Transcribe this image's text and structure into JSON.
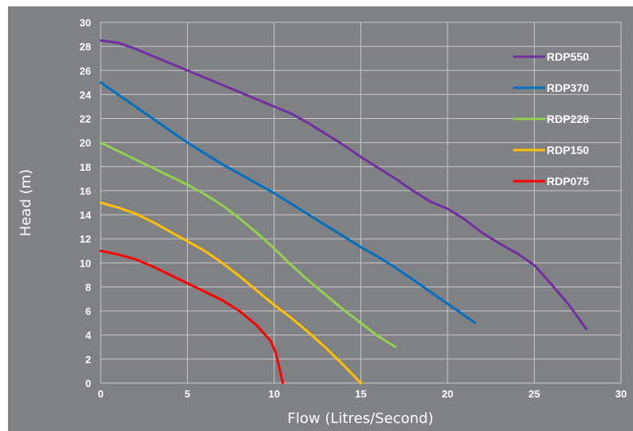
{
  "chart_data": {
    "type": "line",
    "title": "",
    "xlabel": "Flow (Litres/Second)",
    "ylabel": "Head (m)",
    "xlim": [
      0,
      30
    ],
    "ylim": [
      0,
      30
    ],
    "x_ticks": [
      "0",
      "5",
      "10",
      "15",
      "20",
      "25",
      "30"
    ],
    "y_ticks": [
      "0",
      "2",
      "4",
      "6",
      "8",
      "10",
      "12",
      "14",
      "16",
      "18",
      "20",
      "22",
      "24",
      "26",
      "28",
      "30"
    ],
    "grid": true,
    "legend_position": "top-right",
    "series": [
      {
        "name": "RDP550",
        "color": "#7030a0",
        "points": [
          [
            0,
            28.5
          ],
          [
            1,
            28.3
          ],
          [
            2,
            27.8
          ],
          [
            3,
            27.2
          ],
          [
            4,
            26.6
          ],
          [
            5,
            26.0
          ],
          [
            6,
            25.4
          ],
          [
            7,
            24.8
          ],
          [
            8,
            24.2
          ],
          [
            9,
            23.6
          ],
          [
            10,
            23.0
          ],
          [
            11,
            22.4
          ],
          [
            12,
            21.6
          ],
          [
            13,
            20.7
          ],
          [
            14,
            19.8
          ],
          [
            15,
            18.8
          ],
          [
            16,
            17.9
          ],
          [
            17,
            17.0
          ],
          [
            18,
            16.0
          ],
          [
            19,
            15.1
          ],
          [
            20,
            14.5
          ],
          [
            21,
            13.6
          ],
          [
            22,
            12.5
          ],
          [
            23,
            11.6
          ],
          [
            24,
            10.8
          ],
          [
            25,
            9.8
          ],
          [
            26,
            8.2
          ],
          [
            27,
            6.5
          ],
          [
            28,
            4.5
          ]
        ]
      },
      {
        "name": "RDP370",
        "color": "#0070c0",
        "points": [
          [
            0,
            25.0
          ],
          [
            1,
            24.0
          ],
          [
            2,
            23.0
          ],
          [
            3,
            22.0
          ],
          [
            4,
            21.0
          ],
          [
            5,
            20.0
          ],
          [
            6,
            19.1
          ],
          [
            7,
            18.2
          ],
          [
            8,
            17.4
          ],
          [
            9,
            16.6
          ],
          [
            10,
            15.8
          ],
          [
            11,
            14.9
          ],
          [
            12,
            14.0
          ],
          [
            13,
            13.1
          ],
          [
            14,
            12.2
          ],
          [
            15,
            11.3
          ],
          [
            16,
            10.5
          ],
          [
            17,
            9.6
          ],
          [
            18,
            8.6
          ],
          [
            19,
            7.6
          ],
          [
            20,
            6.6
          ],
          [
            21,
            5.6
          ],
          [
            21.6,
            5.0
          ]
        ]
      },
      {
        "name": "RDP228",
        "color": "#92d050",
        "points": [
          [
            0,
            20.0
          ],
          [
            1,
            19.3
          ],
          [
            2,
            18.6
          ],
          [
            3,
            17.9
          ],
          [
            4,
            17.2
          ],
          [
            5,
            16.5
          ],
          [
            6,
            15.7
          ],
          [
            7,
            14.8
          ],
          [
            8,
            13.7
          ],
          [
            9,
            12.5
          ],
          [
            10,
            11.2
          ],
          [
            11,
            9.8
          ],
          [
            12,
            8.5
          ],
          [
            13,
            7.3
          ],
          [
            14,
            6.1
          ],
          [
            15,
            5.0
          ],
          [
            16,
            3.9
          ],
          [
            17,
            3.0
          ]
        ]
      },
      {
        "name": "RDP150",
        "color": "#ffc000",
        "points": [
          [
            0,
            15.0
          ],
          [
            1,
            14.6
          ],
          [
            2,
            14.1
          ],
          [
            3,
            13.4
          ],
          [
            4,
            12.6
          ],
          [
            5,
            11.8
          ],
          [
            6,
            11.0
          ],
          [
            7,
            10.0
          ],
          [
            8,
            8.9
          ],
          [
            9,
            7.7
          ],
          [
            10,
            6.5
          ],
          [
            11,
            5.4
          ],
          [
            12,
            4.2
          ],
          [
            13,
            2.9
          ],
          [
            14,
            1.5
          ],
          [
            15,
            0.0
          ]
        ]
      },
      {
        "name": "RDP075",
        "color": "#ff0000",
        "points": [
          [
            0,
            11.0
          ],
          [
            1,
            10.7
          ],
          [
            2,
            10.3
          ],
          [
            3,
            9.7
          ],
          [
            4,
            9.0
          ],
          [
            5,
            8.3
          ],
          [
            6,
            7.6
          ],
          [
            7,
            6.9
          ],
          [
            8,
            6.0
          ],
          [
            9,
            4.8
          ],
          [
            9.8,
            3.5
          ],
          [
            10.1,
            2.5
          ],
          [
            10.5,
            0.0
          ]
        ]
      }
    ]
  }
}
